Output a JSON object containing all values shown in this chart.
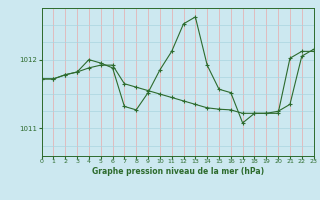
{
  "title": "Graphe pression niveau de la mer (hPa)",
  "bg_color": "#cce8f0",
  "line_color": "#2d6b2d",
  "grid_color_v": "#e8aaaa",
  "grid_color_h": "#aad4e0",
  "ylim": [
    1010.6,
    1012.75
  ],
  "yticks": [
    1011,
    1012
  ],
  "xlim": [
    0,
    23
  ],
  "xticks": [
    0,
    1,
    2,
    3,
    4,
    5,
    6,
    7,
    8,
    9,
    10,
    11,
    12,
    13,
    14,
    15,
    16,
    17,
    18,
    19,
    20,
    21,
    22,
    23
  ],
  "series1_x": [
    0,
    1,
    2,
    3,
    4,
    5,
    6,
    7,
    8,
    9,
    10,
    11,
    12,
    13,
    14,
    15,
    16,
    17,
    18,
    19,
    20,
    21,
    22,
    23
  ],
  "series1_y": [
    1011.72,
    1011.72,
    1011.78,
    1011.82,
    1011.88,
    1011.92,
    1011.92,
    1011.65,
    1011.6,
    1011.55,
    1011.5,
    1011.45,
    1011.4,
    1011.35,
    1011.3,
    1011.28,
    1011.27,
    1011.22,
    1011.22,
    1011.22,
    1011.25,
    1011.35,
    1012.05,
    1012.15
  ],
  "series2_x": [
    0,
    1,
    2,
    3,
    4,
    5,
    6,
    7,
    8,
    9,
    10,
    11,
    12,
    13,
    14,
    15,
    16,
    17,
    18,
    19,
    20,
    21,
    22,
    23
  ],
  "series2_y": [
    1011.72,
    1011.72,
    1011.78,
    1011.82,
    1012.0,
    1011.95,
    1011.88,
    1011.32,
    1011.27,
    1011.52,
    1011.85,
    1012.12,
    1012.52,
    1012.62,
    1011.92,
    1011.57,
    1011.52,
    1011.08,
    1011.22,
    1011.22,
    1011.22,
    1012.02,
    1012.12,
    1012.12
  ]
}
